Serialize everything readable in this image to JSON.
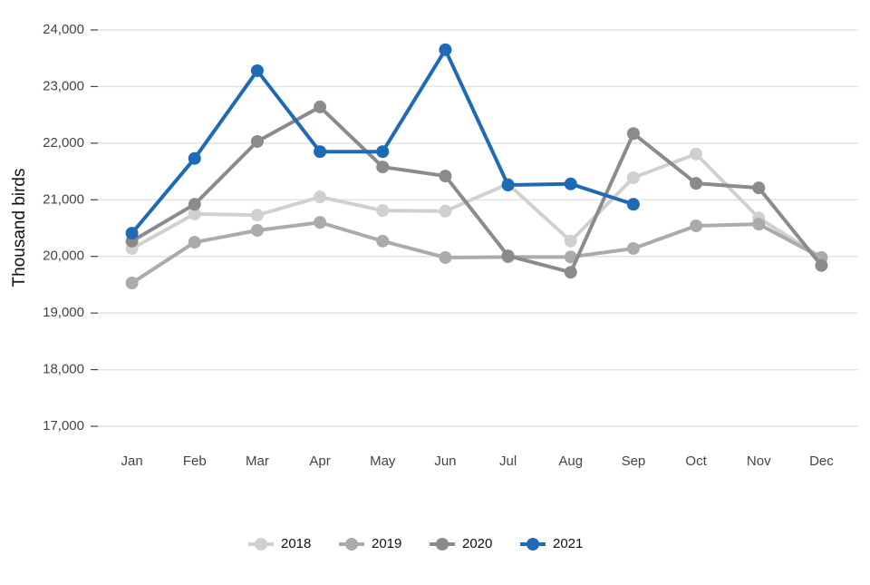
{
  "chart_data": {
    "type": "line",
    "ylabel": "Thousand birds",
    "categories": [
      "Jan",
      "Feb",
      "Mar",
      "Apr",
      "May",
      "Jun",
      "Jul",
      "Aug",
      "Sep",
      "Oct",
      "Nov",
      "Dec"
    ],
    "series": [
      {
        "name": "2018",
        "color": "#d0d0d0",
        "values": [
          20140,
          20750,
          20730,
          21050,
          20810,
          20800,
          21280,
          20270,
          21390,
          21810,
          20680,
          19980
        ]
      },
      {
        "name": "2019",
        "color": "#ababab",
        "values": [
          19530,
          20250,
          20460,
          20600,
          20270,
          19980,
          19990,
          19990,
          20140,
          20540,
          20570,
          19980
        ]
      },
      {
        "name": "2020",
        "color": "#8c8a8a",
        "values": [
          20270,
          20920,
          22030,
          22640,
          21580,
          21420,
          20010,
          19720,
          22170,
          21290,
          21210,
          19840
        ]
      },
      {
        "name": "2021",
        "color": "#1f6ab4",
        "values": [
          20410,
          21730,
          23280,
          21850,
          21850,
          23650,
          21260,
          21280,
          20920,
          null,
          null,
          null
        ]
      }
    ],
    "ylim": [
      17000,
      24000
    ],
    "yticks": [
      {
        "value": 17000,
        "label": "17,000"
      },
      {
        "value": 18000,
        "label": "18,000"
      },
      {
        "value": 19000,
        "label": "19,000"
      },
      {
        "value": 20000,
        "label": "20,000"
      },
      {
        "value": 21000,
        "label": "21,000"
      },
      {
        "value": 22000,
        "label": "22,000"
      },
      {
        "value": 23000,
        "label": "23,000"
      },
      {
        "value": 24000,
        "label": "24,000"
      }
    ],
    "grid": true,
    "legend": "bottom"
  }
}
